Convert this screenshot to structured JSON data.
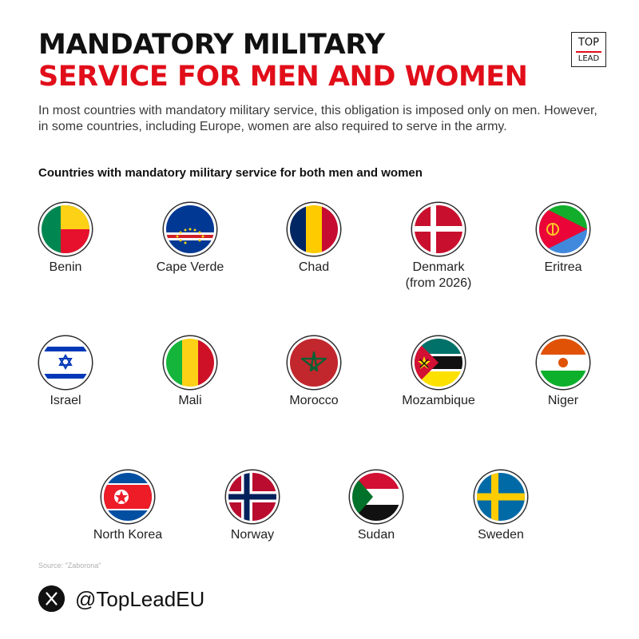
{
  "header": {
    "title_line1": "MANDATORY MILITARY",
    "title_line2": "SERVICE FOR MEN AND WOMEN",
    "title_color_line1": "#111111",
    "title_color_line2": "#e10e1a"
  },
  "logo": {
    "top": "TOP",
    "bottom": "LEAD"
  },
  "intro": "In most countries with mandatory military service, this obligation is imposed only on men. However, in some countries, including Europe, women are also required to serve in the army.",
  "subtitle": "Countries with mandatory military service for both men and women",
  "countries": [
    {
      "name": "Benin",
      "note": "",
      "flag_icon": "benin-flag-icon"
    },
    {
      "name": "Cape Verde",
      "note": "",
      "flag_icon": "cape-verde-flag-icon"
    },
    {
      "name": "Chad",
      "note": "",
      "flag_icon": "chad-flag-icon"
    },
    {
      "name": "Denmark",
      "note": "(from 2026)",
      "flag_icon": "denmark-flag-icon"
    },
    {
      "name": "Eritrea",
      "note": "",
      "flag_icon": "eritrea-flag-icon"
    },
    {
      "name": "Israel",
      "note": "",
      "flag_icon": "israel-flag-icon"
    },
    {
      "name": "Mali",
      "note": "",
      "flag_icon": "mali-flag-icon"
    },
    {
      "name": "Morocco",
      "note": "",
      "flag_icon": "morocco-flag-icon"
    },
    {
      "name": "Mozambique",
      "note": "",
      "flag_icon": "mozambique-flag-icon"
    },
    {
      "name": "Niger",
      "note": "",
      "flag_icon": "niger-flag-icon"
    },
    {
      "name": "North Korea",
      "note": "",
      "flag_icon": "north-korea-flag-icon"
    },
    {
      "name": "Norway",
      "note": "",
      "flag_icon": "norway-flag-icon"
    },
    {
      "name": "Sudan",
      "note": "",
      "flag_icon": "sudan-flag-icon"
    },
    {
      "name": "Sweden",
      "note": "",
      "flag_icon": "sweden-flag-icon"
    }
  ],
  "source": "Source: \"Zaborona\"",
  "social": {
    "icon": "x-logo-icon",
    "handle": "@TopLeadEU"
  }
}
